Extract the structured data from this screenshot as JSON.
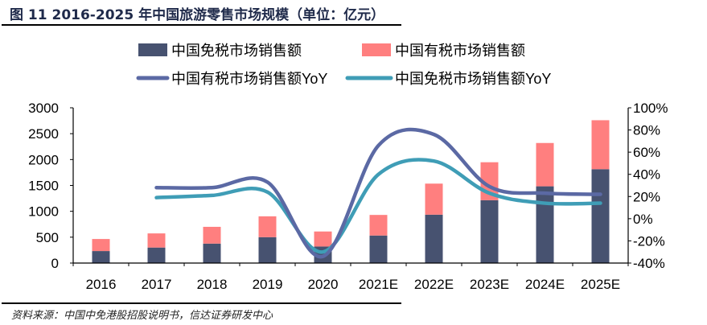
{
  "title": "图 11  2016-2025 年中国旅游零售市场规模（单位：亿元）",
  "source": "资料来源：中国中免港股招股说明书，信达证券研发中心",
  "colors": {
    "duty_free": "#475270",
    "duty_paid": "#ff7f7f",
    "duty_paid_yoy": "#5b69a4",
    "duty_free_yoy": "#3f9db6",
    "title": "#1f2a4a"
  },
  "chart_data": {
    "type": "bar",
    "stacked": true,
    "categories": [
      "2016",
      "2017",
      "2018",
      "2019",
      "2020",
      "2021E",
      "2022E",
      "2023E",
      "2024E",
      "2025E"
    ],
    "series": [
      {
        "name": "中国免税市场销售额",
        "type": "bar",
        "axis": "left",
        "values": [
          232,
          300,
          376,
          500,
          320,
          532,
          935,
          1214,
          1483,
          1814
        ]
      },
      {
        "name": "中国有税市场销售额",
        "type": "bar",
        "axis": "left",
        "values": [
          233,
          273,
          324,
          403,
          290,
          398,
          600,
          734,
          837,
          946
        ]
      },
      {
        "name": "中国有税市场销售额YoY",
        "type": "line",
        "axis": "right",
        "values": [
          null,
          0.28,
          0.28,
          0.33,
          -0.34,
          0.66,
          0.76,
          0.29,
          0.23,
          0.22
        ]
      },
      {
        "name": "中国免税市场销售额YoY",
        "type": "line",
        "axis": "right",
        "values": [
          null,
          0.19,
          0.21,
          0.24,
          -0.3,
          0.4,
          0.52,
          0.23,
          0.14,
          0.14
        ]
      }
    ],
    "y_left": {
      "min": 0,
      "max": 3000,
      "ticks": [
        "0",
        "500",
        "1000",
        "1500",
        "2000",
        "2500",
        "3000"
      ]
    },
    "y_right": {
      "min": -0.4,
      "max": 1.0,
      "ticks": [
        "-40%",
        "-20%",
        "0%",
        "20%",
        "40%",
        "60%",
        "80%",
        "100%"
      ]
    },
    "grid": false,
    "legend": "top"
  }
}
